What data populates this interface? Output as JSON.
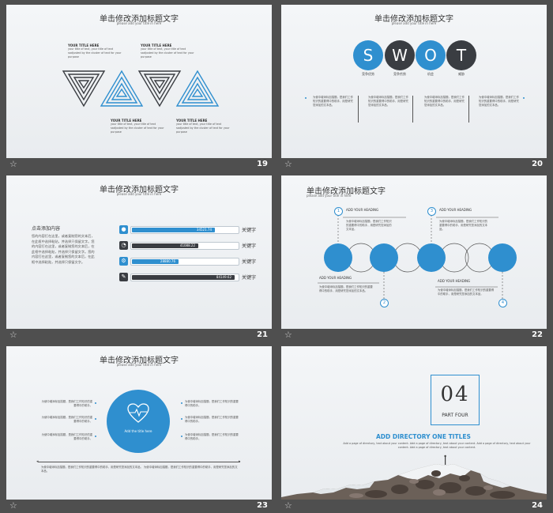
{
  "slides": [
    {
      "number": "19",
      "title": "单击修改添加标题文字",
      "subtitle": "please add your title in here",
      "blocks": [
        {
          "heading": "YOUR TITLE HERE",
          "text": "your title of text, your title of text sadjusted by the cluster of text for your purpose"
        },
        {
          "heading": "YOUR TITLE HERE",
          "text": "your title of text, your title of text sadjusted by the cluster of text for your purpose"
        },
        {
          "heading": "YOUR TITLE HERE",
          "text": "your title of text, your title of text sadjusted by the cluster of text for your purpose"
        },
        {
          "heading": "YOUR TITLE HERE",
          "text": "your title of text, your title of text sadjusted by the cluster of text for your purpose"
        }
      ]
    },
    {
      "number": "20",
      "title": "单击修改添加标题文字",
      "subtitle": "please add your title in here",
      "letters": [
        "S",
        "W",
        "O",
        "T"
      ],
      "labels": [
        "竞争优势",
        "竞争劣势",
        "机会",
        "威胁"
      ],
      "texts": [
        "为使中增添标加描题，是我们工作知识的重要得中的助手，用是研究您添加的文本品。",
        "为使中增添标加描题，是我们工作知识的重要得中的助手，用是研究您添加的文本品。",
        "为使中增添标加描题，是我们工作知识的重要得中的助手，用是研究您添加的文本品。",
        "为使中增添标加描题，是我们工作知识的重要得中的助手，用是研究您添加的文本品。"
      ]
    },
    {
      "number": "21",
      "title": "单击修改添加标题文字",
      "subtitle": "please add your title in here",
      "content_title": "点击添加内容",
      "content_text": "您的内容打在这里，或者复制您的文本后，在此框中选择粘贴，并选择只保留文字。您的内容打在这里，或者复制您的文本后，在此框中选择粘贴，并选择只保留文字。您的内容打在这里，或者复制您的文本后，在此框中选择粘贴，并选择只保留文字。",
      "bars": [
        {
          "value": "34521.74",
          "level": 0.78,
          "key": "关键字",
          "color": "#2f8fcf",
          "icon": "user-icon"
        },
        {
          "value": "41088.22",
          "level": 0.63,
          "key": "关键字",
          "color": "#3a3d42",
          "icon": "pie-chart-icon"
        },
        {
          "value": "28880.76",
          "level": 0.44,
          "key": "关键字",
          "color": "#2f8fcf",
          "icon": "gear-icon"
        },
        {
          "value": "84149.62",
          "level": 0.97,
          "key": "关键字",
          "color": "#3a3d42",
          "icon": "edit-icon"
        }
      ]
    },
    {
      "number": "22",
      "title": "单击修改添加标题文字",
      "subtitle": "please add your title in here",
      "steps": [
        {
          "num": "1",
          "heading": "ADD YOUR HEADING",
          "text": "为使中增添标加描题，是我们工作知识的重要得中的助手，用是研究您添加的文本品。"
        },
        {
          "num": "2",
          "heading": "ADD YOUR HEADING",
          "text": "为使中增添标加描题，是我们工作知识的重要得中的助手，用是研究您添加的文本品。"
        },
        {
          "num": "3",
          "heading": "ADD YOUR HEADING",
          "text": "为使中增添标加描题，是我们工作知识的重要得中的助手，用是研究您添加的文本品。"
        },
        {
          "num": "4",
          "heading": "ADD YOUR HEADING",
          "text": "为使中增添标加描题，是我们工作知识的重要得中的助手，用是研究您添加的文本品。"
        }
      ]
    },
    {
      "number": "23",
      "title": "单击修改添加标题文字",
      "subtitle": "please add your title in here",
      "center_text": "Add the title here",
      "left_items": [
        "为使中增添标加描题，是我们工作知识的重要得中的助手。",
        "为使中增添标加描题，是我们工作知识的重要得中的助手。",
        "为使中增添标加描题，是我们工作知识的重要得中的助手。"
      ],
      "right_items": [
        "为使中增添标加描题，是我们工作知识的重要得中的助手。",
        "为使中增添标加描题，是我们工作知识的重要得中的助手。",
        "为使中增添标加描题，是我们工作知识的重要得中的助手。"
      ],
      "bottom_text": "为使中增添标加描题，是我们工作知识的重要得中的助手，用是研究您添加的文本品。 为使中增添标加描题，是我们工作知识的重要得中的助手，用是研究您添加的文本品。"
    },
    {
      "number": "24",
      "big_number": "04",
      "part": "PART FOUR",
      "heading": "ADD DIRECTORY ONE TITLES",
      "text": "Add a page of directory, text about your content. Add a page of directory, text about your content. Add a page of directory, text about your content. Add a page of directory, text about your content."
    }
  ],
  "colors": {
    "blue": "#2f8fcf",
    "dark": "#3a3d42",
    "bg": "#4f4f4f"
  }
}
